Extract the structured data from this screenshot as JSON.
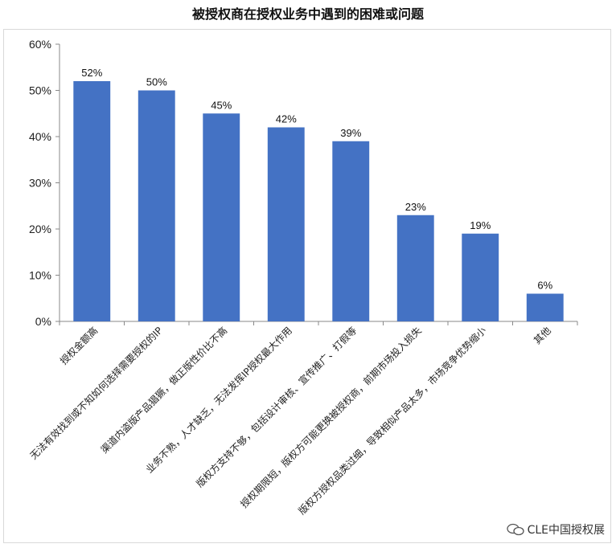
{
  "chart_data": {
    "type": "bar",
    "title": "被授权商在授权业务中遇到的困难或问题",
    "categories": [
      "授权金额高",
      "无法有效找到或不知如何选择需要授权的IP",
      "渠道内盗版产品猖獗，做正版性价比不高",
      "业务不熟，人才缺乏，无法发挥IP授权最大作用",
      "版权方支持不够，包括设计审核、宣传推广、打假等",
      "授权期限短，版权方可能更换被授权商，前期市场投入损失",
      "版权方授权品类过细，导致相似产品太多，市场竞争优势缩小",
      "其他"
    ],
    "values": [
      52,
      50,
      45,
      42,
      39,
      23,
      19,
      6
    ],
    "value_labels": [
      "52%",
      "50%",
      "45%",
      "42%",
      "39%",
      "23%",
      "19%",
      "6%"
    ],
    "y_ticks": [
      "0%",
      "10%",
      "20%",
      "30%",
      "40%",
      "50%",
      "60%"
    ],
    "ylim": [
      0,
      60
    ],
    "bar_color": "#4472C4",
    "grid": false
  },
  "watermark": "CLE中国授权展"
}
